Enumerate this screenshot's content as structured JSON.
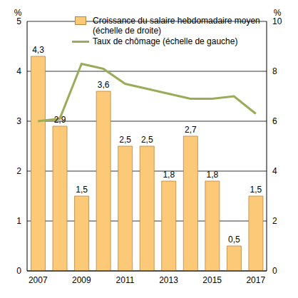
{
  "chart_data": {
    "type": "bar",
    "categories": [
      "2007",
      null,
      "2009",
      null,
      "2011",
      null,
      "2013",
      null,
      "2015",
      null,
      "2017"
    ],
    "y_label": "%",
    "y2_label": "%",
    "ylim": [
      0,
      5
    ],
    "yticks": [
      0,
      1,
      2,
      3,
      4,
      5
    ],
    "y2lim": [
      0,
      10
    ],
    "y2ticks": [
      0,
      2,
      4,
      6,
      8,
      10
    ],
    "grid": true,
    "legend": "top",
    "data_labels": true,
    "series": [
      {
        "name": "Croissance du salaire hebdomadaire moyen (échelle de droite)",
        "type": "bar",
        "color": "#fcc978",
        "values": [
          4.3,
          2.9,
          1.5,
          3.6,
          2.5,
          2.5,
          1.8,
          2.7,
          1.8,
          0.5,
          1.5
        ],
        "value_labels": [
          "4,3",
          "2,9",
          "1,5",
          "3,6",
          "2,5",
          "2,5",
          "1,8",
          "2,7",
          "1,8",
          "0,5",
          "1,5"
        ]
      },
      {
        "name": "Taux de chômage (échelle de gauche)",
        "type": "line",
        "color": "#9aab5a",
        "axis": "y2",
        "values": [
          6.0,
          6.1,
          8.3,
          8.1,
          7.5,
          7.3,
          7.1,
          6.9,
          6.9,
          7.0,
          6.3
        ]
      }
    ]
  }
}
